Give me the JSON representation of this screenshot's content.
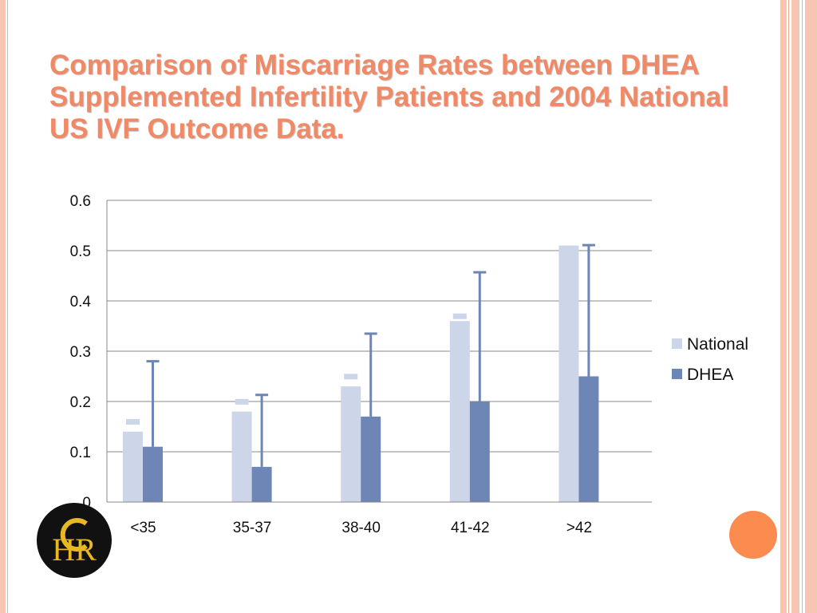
{
  "title": "Comparison of Miscarriage Rates between DHEA Supplemented Infertility Patients and 2004 National US IVF Outcome Data.",
  "logo": {
    "text": "HCR",
    "colors": {
      "background": "#111111",
      "letters": "#e8b724"
    }
  },
  "colors": {
    "title": "#f08a66",
    "accent_circle": "#fb8b4f",
    "frame": "#f7c6b3"
  },
  "chart_data": {
    "type": "bar",
    "categories": [
      "<35",
      "35-37",
      "38-40",
      "41-42",
      ">42"
    ],
    "series": [
      {
        "name": "National",
        "values": [
          0.14,
          0.18,
          0.23,
          0.36,
          0.51
        ],
        "error_upper": [
          0.165,
          0.205,
          0.255,
          0.375,
          0.51
        ],
        "color": "#cdd5e8"
      },
      {
        "name": "DHEA",
        "values": [
          0.11,
          0.07,
          0.17,
          0.2,
          0.25
        ],
        "error_upper": [
          0.28,
          0.213,
          0.335,
          0.457,
          0.511
        ],
        "color": "#6e86b5"
      }
    ],
    "ylim": [
      0,
      0.6
    ],
    "yticks": [
      "0",
      "0.1",
      "0.2",
      "0.3",
      "0.4",
      "0.5",
      "0.6"
    ],
    "grid": true,
    "legend_position": "right"
  }
}
